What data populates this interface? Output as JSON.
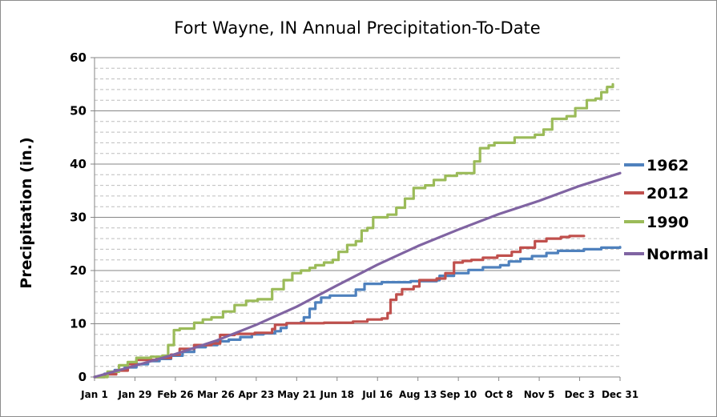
{
  "chart_data": {
    "type": "line",
    "title": "Fort Wayne, IN Annual Precipitation-To-Date",
    "xlabel": "",
    "ylabel": "Precipitation (in.)",
    "ylim": [
      0,
      60
    ],
    "xlim_day": [
      1,
      365
    ],
    "y_ticks": [
      "0",
      "10",
      "20",
      "30",
      "40",
      "50",
      "60"
    ],
    "x_ticks": [
      {
        "label": "Jan 1",
        "day": 1
      },
      {
        "label": "Jan 29",
        "day": 29
      },
      {
        "label": "Feb 26",
        "day": 57
      },
      {
        "label": "Mar 26",
        "day": 85
      },
      {
        "label": "Apr 23",
        "day": 113
      },
      {
        "label": "May 21",
        "day": 141
      },
      {
        "label": "Jun 18",
        "day": 169
      },
      {
        "label": "Jul 16",
        "day": 197
      },
      {
        "label": "Aug 13",
        "day": 225
      },
      {
        "label": "Sep 10",
        "day": 253
      },
      {
        "label": "Oct 8",
        "day": 281
      },
      {
        "label": "Nov 5",
        "day": 309
      },
      {
        "label": "Dec 3",
        "day": 337
      },
      {
        "label": "Dec 31",
        "day": 365
      }
    ],
    "grid": {
      "major_y": true,
      "minor_y_dashed": true
    },
    "legend_position": "right",
    "series": [
      {
        "name": "1962",
        "color": "#4f81bd",
        "step": true,
        "points": [
          [
            1,
            0
          ],
          [
            8,
            0.6
          ],
          [
            15,
            1.3
          ],
          [
            22,
            1.8
          ],
          [
            30,
            2.4
          ],
          [
            38,
            3.0
          ],
          [
            46,
            3.4
          ],
          [
            54,
            4.0
          ],
          [
            62,
            4.7
          ],
          [
            70,
            5.6
          ],
          [
            78,
            6.0
          ],
          [
            86,
            6.7
          ],
          [
            94,
            7.0
          ],
          [
            102,
            7.5
          ],
          [
            110,
            8.0
          ],
          [
            118,
            8.2
          ],
          [
            126,
            8.6
          ],
          [
            130,
            9.2
          ],
          [
            134,
            10.1
          ],
          [
            144,
            10.3
          ],
          [
            146,
            11.2
          ],
          [
            150,
            12.8
          ],
          [
            154,
            14.0
          ],
          [
            158,
            14.9
          ],
          [
            164,
            15.3
          ],
          [
            182,
            16.4
          ],
          [
            188,
            17.5
          ],
          [
            200,
            17.8
          ],
          [
            220,
            18.0
          ],
          [
            238,
            18.2
          ],
          [
            240,
            19.0
          ],
          [
            250,
            19.5
          ],
          [
            260,
            20.1
          ],
          [
            270,
            20.6
          ],
          [
            282,
            21.0
          ],
          [
            288,
            21.7
          ],
          [
            296,
            22.2
          ],
          [
            304,
            22.7
          ],
          [
            314,
            23.3
          ],
          [
            322,
            23.7
          ],
          [
            340,
            24.0
          ],
          [
            352,
            24.3
          ],
          [
            365,
            24.4
          ]
        ]
      },
      {
        "name": "2012",
        "color": "#c0504d",
        "step": true,
        "points": [
          [
            1,
            0
          ],
          [
            8,
            0.5
          ],
          [
            16,
            1.2
          ],
          [
            24,
            2.4
          ],
          [
            30,
            3.2
          ],
          [
            44,
            3.6
          ],
          [
            54,
            4.2
          ],
          [
            60,
            5.3
          ],
          [
            70,
            6.0
          ],
          [
            82,
            6.3
          ],
          [
            88,
            7.9
          ],
          [
            98,
            8.1
          ],
          [
            112,
            8.3
          ],
          [
            124,
            9.0
          ],
          [
            126,
            9.8
          ],
          [
            134,
            10.1
          ],
          [
            160,
            10.2
          ],
          [
            180,
            10.4
          ],
          [
            190,
            10.8
          ],
          [
            200,
            11.0
          ],
          [
            204,
            12.0
          ],
          [
            206,
            14.5
          ],
          [
            210,
            15.5
          ],
          [
            214,
            16.5
          ],
          [
            222,
            17.0
          ],
          [
            226,
            18.2
          ],
          [
            238,
            18.5
          ],
          [
            244,
            19.5
          ],
          [
            250,
            21.5
          ],
          [
            256,
            21.8
          ],
          [
            262,
            22.0
          ],
          [
            270,
            22.4
          ],
          [
            280,
            22.8
          ],
          [
            290,
            23.5
          ],
          [
            296,
            24.3
          ],
          [
            306,
            25.5
          ],
          [
            314,
            26.0
          ],
          [
            324,
            26.3
          ],
          [
            330,
            26.5
          ],
          [
            340,
            26.5
          ]
        ]
      },
      {
        "name": "1990",
        "color": "#9bbb59",
        "step": true,
        "points": [
          [
            1,
            0
          ],
          [
            10,
            1.0
          ],
          [
            18,
            2.2
          ],
          [
            24,
            2.8
          ],
          [
            30,
            3.6
          ],
          [
            40,
            3.8
          ],
          [
            48,
            4.0
          ],
          [
            52,
            6.0
          ],
          [
            56,
            8.8
          ],
          [
            60,
            9.1
          ],
          [
            70,
            10.2
          ],
          [
            76,
            10.8
          ],
          [
            82,
            11.2
          ],
          [
            90,
            12.3
          ],
          [
            98,
            13.5
          ],
          [
            106,
            14.3
          ],
          [
            114,
            14.6
          ],
          [
            124,
            16.5
          ],
          [
            132,
            18.2
          ],
          [
            138,
            19.5
          ],
          [
            144,
            20.0
          ],
          [
            150,
            20.5
          ],
          [
            154,
            21.0
          ],
          [
            160,
            21.5
          ],
          [
            166,
            22.0
          ],
          [
            170,
            23.5
          ],
          [
            176,
            24.8
          ],
          [
            182,
            25.5
          ],
          [
            186,
            27.5
          ],
          [
            190,
            28.0
          ],
          [
            194,
            30.0
          ],
          [
            204,
            30.5
          ],
          [
            210,
            31.8
          ],
          [
            216,
            33.5
          ],
          [
            222,
            35.5
          ],
          [
            230,
            36.0
          ],
          [
            236,
            37.0
          ],
          [
            244,
            37.8
          ],
          [
            252,
            38.3
          ],
          [
            264,
            40.5
          ],
          [
            268,
            43.0
          ],
          [
            274,
            43.5
          ],
          [
            278,
            44.0
          ],
          [
            292,
            45.0
          ],
          [
            306,
            45.5
          ],
          [
            312,
            46.5
          ],
          [
            318,
            48.5
          ],
          [
            328,
            49.0
          ],
          [
            334,
            50.5
          ],
          [
            342,
            52.0
          ],
          [
            348,
            52.3
          ],
          [
            352,
            53.5
          ],
          [
            356,
            54.5
          ],
          [
            360,
            55.0
          ]
        ]
      },
      {
        "name": "Normal",
        "color": "#8064a2",
        "step": false,
        "points": [
          [
            1,
            0
          ],
          [
            29,
            2.1
          ],
          [
            57,
            4.3
          ],
          [
            85,
            6.8
          ],
          [
            113,
            9.8
          ],
          [
            141,
            13.2
          ],
          [
            169,
            17.2
          ],
          [
            197,
            21.1
          ],
          [
            225,
            24.6
          ],
          [
            253,
            27.7
          ],
          [
            281,
            30.6
          ],
          [
            309,
            33.1
          ],
          [
            337,
            35.9
          ],
          [
            365,
            38.3
          ]
        ]
      }
    ]
  }
}
